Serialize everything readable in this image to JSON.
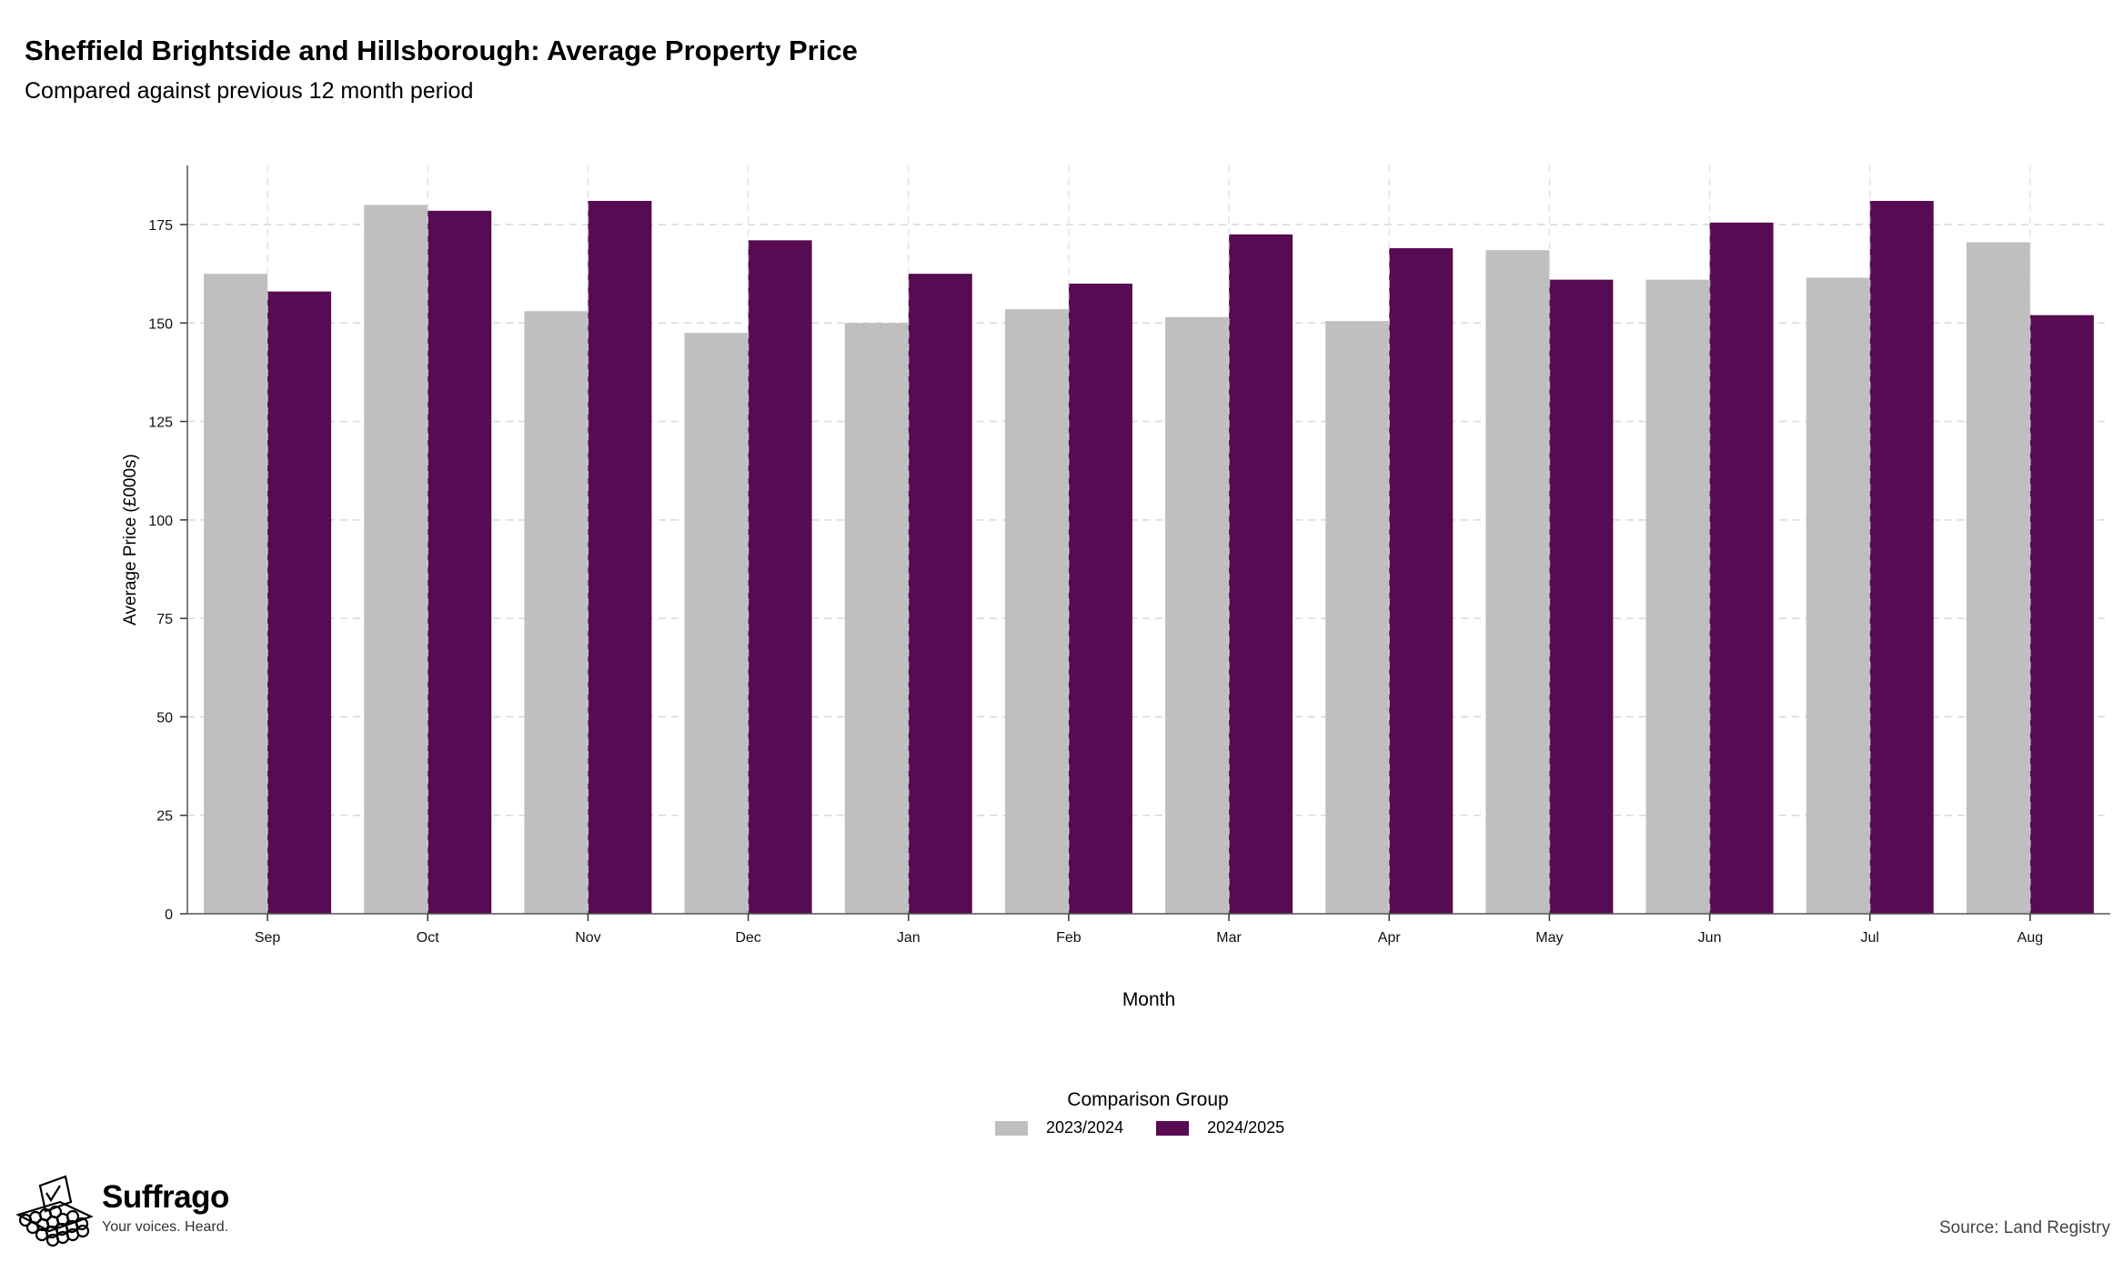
{
  "chart_data": {
    "type": "bar",
    "title": "Sheffield Brightside and Hillsborough: Average Property Price",
    "subtitle": "Compared against previous 12 month period",
    "xlabel": "Month",
    "ylabel": "Average Price (£000s)",
    "categories": [
      "Sep",
      "Oct",
      "Nov",
      "Dec",
      "Jan",
      "Feb",
      "Mar",
      "Apr",
      "May",
      "Jun",
      "Jul",
      "Aug"
    ],
    "series": [
      {
        "name": "2023/2024",
        "color": "#bfbfbf",
        "values": [
          162.5,
          180,
          153,
          147.5,
          150,
          153.5,
          151.5,
          150.5,
          168.5,
          161,
          161.5,
          170.5
        ]
      },
      {
        "name": "2024/2025",
        "color": "#560b52",
        "values": [
          158,
          178.5,
          181,
          171,
          162.5,
          160,
          172.5,
          169,
          161,
          175.5,
          181,
          152
        ]
      }
    ],
    "ylim": [
      0,
      190
    ],
    "yticks": [
      0,
      25,
      50,
      75,
      100,
      125,
      150,
      175
    ],
    "grid": true,
    "legend": {
      "title": "Comparison Group",
      "position": "bottom"
    }
  },
  "footer": {
    "brand": "Suffrago",
    "tagline": "Your voices. Heard.",
    "source": "Source: Land Registry"
  }
}
